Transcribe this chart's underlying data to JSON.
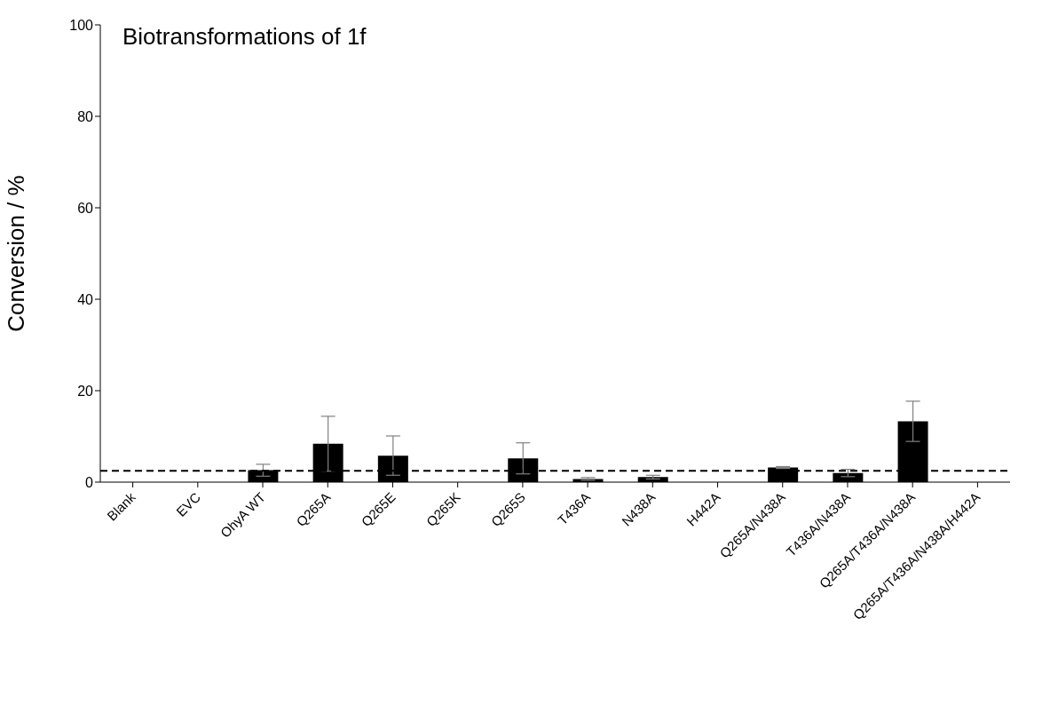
{
  "chart_data": {
    "type": "bar",
    "title": "Biotransformations of 1f",
    "ylabel": "Conversion / %",
    "categories": [
      "Blank",
      "EVC",
      "OhyA WT",
      "Q265A",
      "Q265E",
      "Q265K",
      "Q265S",
      "T436A",
      "N438A",
      "H442A",
      "Q265A/N438A",
      "T436A/N438A",
      "Q265A/T436A/N438A",
      "Q265A/T436A/N438A/H442A"
    ],
    "values": [
      0,
      0,
      2.6,
      8.4,
      5.8,
      0,
      5.2,
      0.7,
      1.1,
      0,
      3.2,
      2.0,
      13.3,
      0
    ],
    "errors": [
      null,
      null,
      1.3,
      6.0,
      4.3,
      null,
      3.4,
      0.3,
      0.4,
      null,
      0.2,
      0.8,
      4.4,
      null
    ],
    "color": "#000000",
    "ylim": [
      0,
      100
    ],
    "yticks": [
      0,
      20,
      40,
      60,
      80,
      100
    ],
    "grid": false,
    "legend": false,
    "ref_lines": [
      {
        "axis": "y",
        "value": 2.5,
        "color": "#000000",
        "line_style": "dashed"
      }
    ]
  }
}
